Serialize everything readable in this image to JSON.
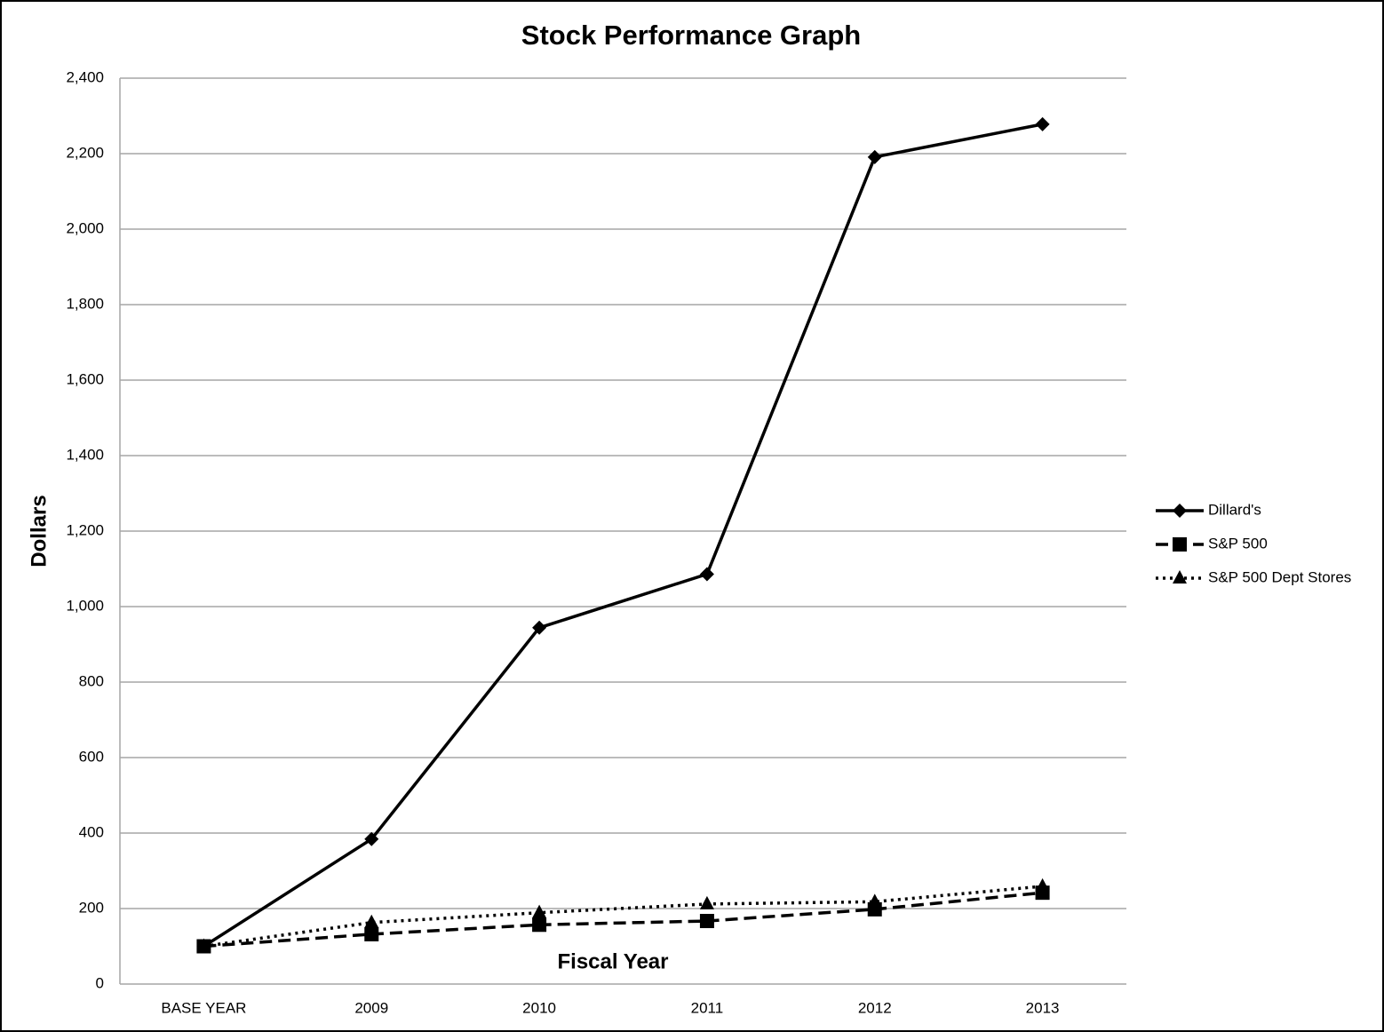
{
  "chart_data": {
    "type": "line",
    "title": "Stock Performance Graph",
    "x_label": "Fiscal Year",
    "y_label": "Dollars",
    "categories": [
      "BASE YEAR",
      "2009",
      "2010",
      "2011",
      "2012",
      "2013"
    ],
    "series": [
      {
        "name": "Dillard's",
        "color": "#000000",
        "line_style": "solid",
        "marker": "diamond",
        "values": [
          100,
          384,
          944,
          1086,
          2191,
          2278
        ]
      },
      {
        "name": "S&P 500",
        "color": "#000000",
        "line_style": "dashed",
        "marker": "square",
        "values": [
          100,
          132,
          157,
          167,
          198,
          242
        ]
      },
      {
        "name": "S&P 500 Dept Stores",
        "color": "#000000",
        "line_style": "dotted",
        "marker": "triangle",
        "values": [
          100,
          163,
          189,
          212,
          218,
          259
        ]
      }
    ],
    "ylim": [
      0,
      2400
    ],
    "yticks": [
      0,
      200,
      400,
      600,
      800,
      {
        "value": 1000,
        "label": "1,000"
      },
      {
        "value": 1200,
        "label": "1,200"
      },
      {
        "value": 1400,
        "label": "1,400"
      },
      {
        "value": 1600,
        "label": "1,600"
      },
      {
        "value": 1800,
        "label": "1,800"
      },
      {
        "value": 2000,
        "label": "2,000"
      },
      {
        "value": 2200,
        "label": "2,200"
      },
      {
        "value": 2400,
        "label": "2,400"
      }
    ],
    "grid": true,
    "legend": "right"
  }
}
